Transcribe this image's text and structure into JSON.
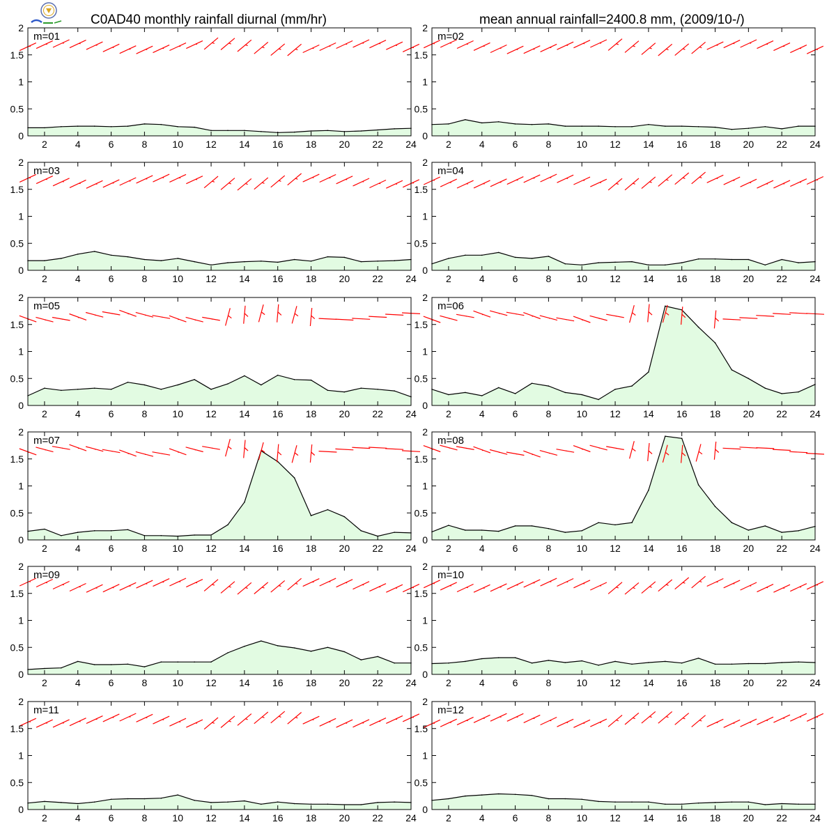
{
  "header": {
    "title_left": "C0AD40 monthly rainfall diurnal (mm/hr)",
    "title_right": "mean annual rainfall=2400.8 mm, (2009/10-/)"
  },
  "colors": {
    "fill": "#e2fbe2",
    "line": "#000000",
    "wind": "#ff0000"
  },
  "chart_data": [
    {
      "type": "area",
      "label": "m=01",
      "x": [
        1,
        2,
        3,
        4,
        5,
        6,
        7,
        8,
        9,
        10,
        11,
        12,
        13,
        14,
        15,
        16,
        17,
        18,
        19,
        20,
        21,
        22,
        23,
        24
      ],
      "values": [
        0.15,
        0.15,
        0.17,
        0.18,
        0.18,
        0.17,
        0.18,
        0.22,
        0.21,
        0.17,
        0.16,
        0.1,
        0.1,
        0.1,
        0.08,
        0.06,
        0.07,
        0.09,
        0.1,
        0.08,
        0.09,
        0.11,
        0.13,
        0.14
      ],
      "xlim": [
        1,
        24
      ],
      "ylim": [
        0,
        2
      ],
      "xticks": [
        2,
        4,
        6,
        8,
        10,
        12,
        14,
        16,
        18,
        20,
        22,
        24
      ],
      "yticks": [
        0,
        0.5,
        1,
        1.5,
        2
      ],
      "wind_barbs": "row of red barbs near 1.6-1.7"
    },
    {
      "type": "area",
      "label": "m=02",
      "x": [
        1,
        2,
        3,
        4,
        5,
        6,
        7,
        8,
        9,
        10,
        11,
        12,
        13,
        14,
        15,
        16,
        17,
        18,
        19,
        20,
        21,
        22,
        23,
        24
      ],
      "values": [
        0.21,
        0.22,
        0.3,
        0.24,
        0.26,
        0.22,
        0.21,
        0.22,
        0.18,
        0.18,
        0.18,
        0.17,
        0.17,
        0.21,
        0.18,
        0.18,
        0.17,
        0.16,
        0.12,
        0.14,
        0.17,
        0.13,
        0.18,
        0.18
      ],
      "xlim": [
        1,
        24
      ],
      "ylim": [
        0,
        2
      ],
      "xticks": [
        2,
        4,
        6,
        8,
        10,
        12,
        14,
        16,
        18,
        20,
        22,
        24
      ],
      "yticks": [
        0,
        0.5,
        1,
        1.5,
        2
      ],
      "wind_barbs": "row of red barbs near 1.6-1.8"
    },
    {
      "type": "area",
      "label": "m=03",
      "x": [
        1,
        2,
        3,
        4,
        5,
        6,
        7,
        8,
        9,
        10,
        11,
        12,
        13,
        14,
        15,
        16,
        17,
        18,
        19,
        20,
        21,
        22,
        23,
        24
      ],
      "values": [
        0.18,
        0.18,
        0.22,
        0.3,
        0.35,
        0.28,
        0.25,
        0.2,
        0.18,
        0.22,
        0.16,
        0.1,
        0.14,
        0.16,
        0.17,
        0.15,
        0.2,
        0.17,
        0.25,
        0.24,
        0.16,
        0.17,
        0.18,
        0.2
      ],
      "xlim": [
        1,
        24
      ],
      "ylim": [
        0,
        2
      ],
      "xticks": [
        2,
        4,
        6,
        8,
        10,
        12,
        14,
        16,
        18,
        20,
        22,
        24
      ],
      "yticks": [
        0,
        0.5,
        1,
        1.5,
        2
      ],
      "wind_barbs": "row of red barbs near 1.6-1.8"
    },
    {
      "type": "area",
      "label": "m=04",
      "x": [
        1,
        2,
        3,
        4,
        5,
        6,
        7,
        8,
        9,
        10,
        11,
        12,
        13,
        14,
        15,
        16,
        17,
        18,
        19,
        20,
        21,
        22,
        23,
        24
      ],
      "values": [
        0.12,
        0.22,
        0.28,
        0.28,
        0.33,
        0.24,
        0.22,
        0.26,
        0.12,
        0.1,
        0.14,
        0.15,
        0.16,
        0.1,
        0.1,
        0.14,
        0.21,
        0.21,
        0.2,
        0.2,
        0.1,
        0.2,
        0.14,
        0.16
      ],
      "xlim": [
        1,
        24
      ],
      "ylim": [
        0,
        2
      ],
      "xticks": [
        2,
        4,
        6,
        8,
        10,
        12,
        14,
        16,
        18,
        20,
        22,
        24
      ],
      "yticks": [
        0,
        0.5,
        1,
        1.5,
        2
      ],
      "wind_barbs": "row of red barbs near 1.6-1.9"
    },
    {
      "type": "area",
      "label": "m=05",
      "x": [
        1,
        2,
        3,
        4,
        5,
        6,
        7,
        8,
        9,
        10,
        11,
        12,
        13,
        14,
        15,
        16,
        17,
        18,
        19,
        20,
        21,
        22,
        23,
        24
      ],
      "values": [
        0.18,
        0.32,
        0.28,
        0.3,
        0.32,
        0.3,
        0.43,
        0.38,
        0.3,
        0.38,
        0.48,
        0.3,
        0.4,
        0.55,
        0.38,
        0.56,
        0.48,
        0.47,
        0.28,
        0.25,
        0.32,
        0.3,
        0.27,
        0.16
      ],
      "xlim": [
        1,
        24
      ],
      "ylim": [
        0,
        2
      ],
      "xticks": [
        2,
        4,
        6,
        8,
        10,
        12,
        14,
        16,
        18,
        20,
        22,
        24
      ],
      "yticks": [
        0,
        0.5,
        1,
        1.5,
        2
      ],
      "wind_barbs": "row of red barbs near 1.6-1.9"
    },
    {
      "type": "area",
      "label": "m=06",
      "x": [
        1,
        2,
        3,
        4,
        5,
        6,
        7,
        8,
        9,
        10,
        11,
        12,
        13,
        14,
        15,
        16,
        17,
        18,
        19,
        20,
        21,
        22,
        23,
        24
      ],
      "values": [
        0.3,
        0.2,
        0.24,
        0.18,
        0.33,
        0.22,
        0.41,
        0.36,
        0.24,
        0.2,
        0.11,
        0.3,
        0.36,
        0.62,
        1.84,
        1.77,
        1.45,
        1.16,
        0.66,
        0.5,
        0.32,
        0.22,
        0.25,
        0.39
      ],
      "xlim": [
        1,
        24
      ],
      "ylim": [
        0,
        2
      ],
      "xticks": [
        2,
        4,
        6,
        8,
        10,
        12,
        14,
        16,
        18,
        20,
        22,
        24
      ],
      "yticks": [
        0,
        0.5,
        1,
        1.5,
        2
      ],
      "wind_barbs": "row of red barbs near 1.5-1.9"
    },
    {
      "type": "area",
      "label": "m=07",
      "x": [
        1,
        2,
        3,
        4,
        5,
        6,
        7,
        8,
        9,
        10,
        11,
        12,
        13,
        14,
        15,
        16,
        17,
        18,
        19,
        20,
        21,
        22,
        23,
        24
      ],
      "values": [
        0.16,
        0.2,
        0.08,
        0.14,
        0.17,
        0.17,
        0.19,
        0.08,
        0.08,
        0.07,
        0.09,
        0.09,
        0.28,
        0.7,
        1.65,
        1.45,
        1.15,
        0.45,
        0.56,
        0.43,
        0.17,
        0.07,
        0.14,
        0.13
      ],
      "xlim": [
        1,
        24
      ],
      "ylim": [
        0,
        2
      ],
      "xticks": [
        2,
        4,
        6,
        8,
        10,
        12,
        14,
        16,
        18,
        20,
        22,
        24
      ],
      "yticks": [
        0,
        0.5,
        1,
        1.5,
        2
      ],
      "wind_barbs": "row of red barbs near 1.4-1.9"
    },
    {
      "type": "area",
      "label": "m=08",
      "x": [
        1,
        2,
        3,
        4,
        5,
        6,
        7,
        8,
        9,
        10,
        11,
        12,
        13,
        14,
        15,
        16,
        17,
        18,
        19,
        20,
        21,
        22,
        23,
        24
      ],
      "values": [
        0.15,
        0.27,
        0.18,
        0.18,
        0.16,
        0.26,
        0.26,
        0.21,
        0.14,
        0.17,
        0.32,
        0.28,
        0.32,
        0.92,
        1.92,
        1.88,
        1.02,
        0.62,
        0.32,
        0.18,
        0.26,
        0.14,
        0.17,
        0.25
      ],
      "xlim": [
        1,
        24
      ],
      "ylim": [
        0,
        2
      ],
      "xticks": [
        2,
        4,
        6,
        8,
        10,
        12,
        14,
        16,
        18,
        20,
        22,
        24
      ],
      "yticks": [
        0,
        0.5,
        1,
        1.5,
        2
      ],
      "wind_barbs": "row of red barbs near 1.5-1.9"
    },
    {
      "type": "area",
      "label": "m=09",
      "x": [
        1,
        2,
        3,
        4,
        5,
        6,
        7,
        8,
        9,
        10,
        11,
        12,
        13,
        14,
        15,
        16,
        17,
        18,
        19,
        20,
        21,
        22,
        23,
        24
      ],
      "values": [
        0.09,
        0.11,
        0.12,
        0.24,
        0.18,
        0.18,
        0.19,
        0.14,
        0.23,
        0.23,
        0.23,
        0.23,
        0.4,
        0.52,
        0.62,
        0.53,
        0.49,
        0.43,
        0.5,
        0.42,
        0.27,
        0.33,
        0.21,
        0.21
      ],
      "xlim": [
        1,
        24
      ],
      "ylim": [
        0,
        2
      ],
      "xticks": [
        2,
        4,
        6,
        8,
        10,
        12,
        14,
        16,
        18,
        20,
        22,
        24
      ],
      "yticks": [
        0,
        0.5,
        1,
        1.5,
        2
      ],
      "wind_barbs": "row of red barbs near 1.6-1.8"
    },
    {
      "type": "area",
      "label": "m=10",
      "x": [
        1,
        2,
        3,
        4,
        5,
        6,
        7,
        8,
        9,
        10,
        11,
        12,
        13,
        14,
        15,
        16,
        17,
        18,
        19,
        20,
        21,
        22,
        23,
        24
      ],
      "values": [
        0.2,
        0.21,
        0.24,
        0.29,
        0.31,
        0.31,
        0.21,
        0.26,
        0.22,
        0.25,
        0.17,
        0.24,
        0.19,
        0.22,
        0.24,
        0.21,
        0.3,
        0.19,
        0.19,
        0.2,
        0.2,
        0.22,
        0.23,
        0.22
      ],
      "xlim": [
        1,
        24
      ],
      "ylim": [
        0,
        2
      ],
      "xticks": [
        2,
        4,
        6,
        8,
        10,
        12,
        14,
        16,
        18,
        20,
        22,
        24
      ],
      "yticks": [
        0,
        0.5,
        1,
        1.5,
        2
      ],
      "wind_barbs": "row of red barbs near 1.6-1.8"
    },
    {
      "type": "area",
      "label": "m=11",
      "x": [
        1,
        2,
        3,
        4,
        5,
        6,
        7,
        8,
        9,
        10,
        11,
        12,
        13,
        14,
        15,
        16,
        17,
        18,
        19,
        20,
        21,
        22,
        23,
        24
      ],
      "values": [
        0.12,
        0.15,
        0.13,
        0.11,
        0.14,
        0.19,
        0.2,
        0.2,
        0.21,
        0.27,
        0.17,
        0.13,
        0.14,
        0.16,
        0.1,
        0.14,
        0.11,
        0.1,
        0.1,
        0.09,
        0.09,
        0.13,
        0.14,
        0.13
      ],
      "xlim": [
        1,
        24
      ],
      "ylim": [
        0,
        2
      ],
      "xticks": [
        2,
        4,
        6,
        8,
        10,
        12,
        14,
        16,
        18,
        20,
        22,
        24
      ],
      "yticks": [
        0,
        0.5,
        1,
        1.5,
        2
      ],
      "wind_barbs": "row of red barbs near 1.6-1.8"
    },
    {
      "type": "area",
      "label": "m=12",
      "x": [
        1,
        2,
        3,
        4,
        5,
        6,
        7,
        8,
        9,
        10,
        11,
        12,
        13,
        14,
        15,
        16,
        17,
        18,
        19,
        20,
        21,
        22,
        23,
        24
      ],
      "values": [
        0.17,
        0.2,
        0.25,
        0.27,
        0.29,
        0.28,
        0.26,
        0.2,
        0.2,
        0.19,
        0.15,
        0.14,
        0.14,
        0.14,
        0.1,
        0.1,
        0.12,
        0.13,
        0.14,
        0.14,
        0.09,
        0.11,
        0.1,
        0.1
      ],
      "xlim": [
        1,
        24
      ],
      "ylim": [
        0,
        2
      ],
      "xticks": [
        2,
        4,
        6,
        8,
        10,
        12,
        14,
        16,
        18,
        20,
        22,
        24
      ],
      "yticks": [
        0,
        0.5,
        1,
        1.5,
        2
      ],
      "wind_barbs": "row of red barbs near 1.6-1.8"
    }
  ]
}
